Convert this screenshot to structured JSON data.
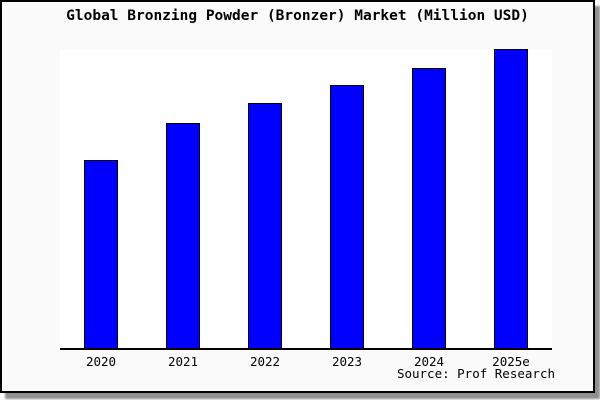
{
  "chart": {
    "title": "Global Bronzing Powder (Bronzer) Market (Million USD)",
    "source": "Source: Prof Research"
  },
  "colors": {
    "bar_fill": "#0000ff",
    "bar_border": "#000000",
    "frame_background": "#fafafa",
    "plot_background": "#ffffff",
    "axis": "#000000",
    "text": "#000000"
  },
  "chart_data": {
    "type": "bar",
    "title": "Global Bronzing Powder (Bronzer) Market (Million USD)",
    "categories": [
      "2020",
      "2021",
      "2022",
      "2023",
      "2024",
      "2025e"
    ],
    "values": [
      62.9,
      75.1,
      81.8,
      87.8,
      93.8,
      100
    ],
    "value_note": "y-axis has no tick labels in the image; values are relative bar heights normalized to 2025e = 100",
    "xlabel": "",
    "ylabel": "",
    "ylim": [
      0,
      100
    ],
    "grid": false,
    "legend": "none",
    "series_name": "Global Bronzing Powder (Bronzer) Market",
    "source": "Source: Prof Research"
  }
}
